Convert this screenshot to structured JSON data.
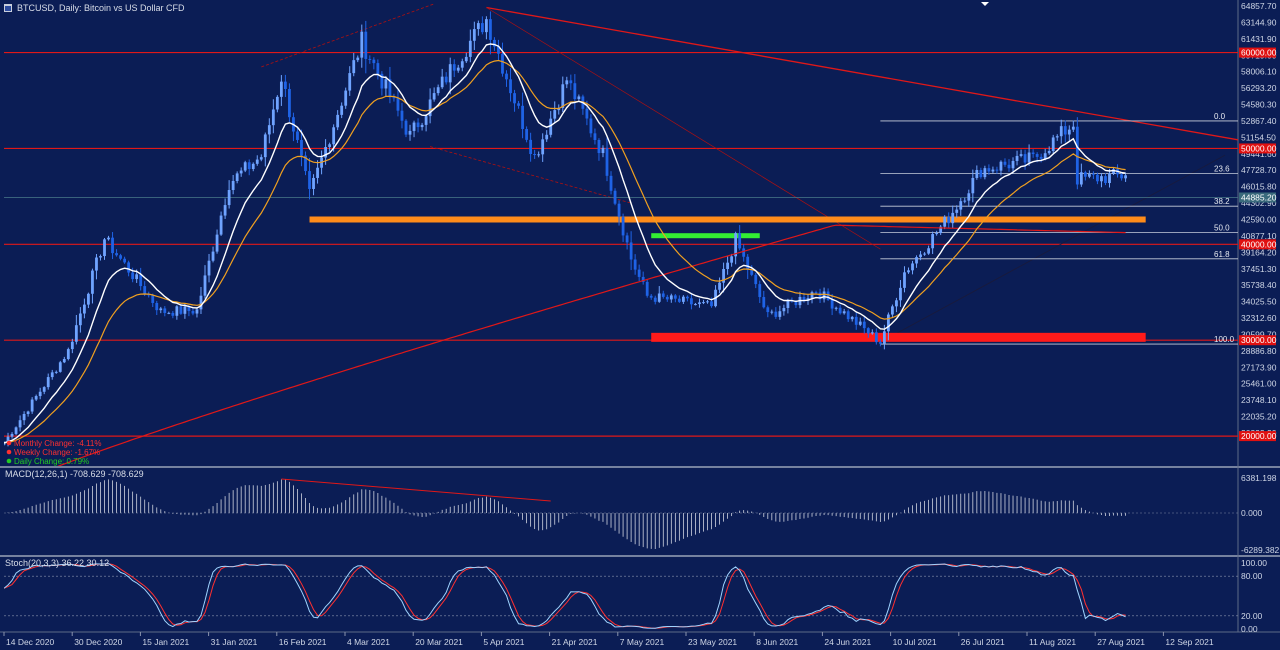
{
  "header": {
    "title": "BTCUSD, Daily:  Bitcoin vs US Dollar CFD"
  },
  "colors": {
    "background": "#0b1d55",
    "bull_candle": "#6fa3ff",
    "bear_candle": "#1f63e6",
    "ema_fast": "#ffffff",
    "ema_mid": "#f0a020",
    "ema_slow": "#e01818",
    "resistance_line": "#e01818",
    "support_zone_orange": "#ff8c1a",
    "support_zone_green": "#33ee33",
    "support_zone_red": "#ff1a1a",
    "macd_hist": "#d0d4e0",
    "stoch_main": "#9fd4ff",
    "stoch_signal": "#ff3030"
  },
  "price_axis": {
    "labels": [
      "64857.70",
      "63144.90",
      "61431.90",
      "59719.00",
      "58006.10",
      "56293.20",
      "54580.30",
      "52867.40",
      "51154.50",
      "49441.60",
      "47728.70",
      "46015.80",
      "44302.90",
      "42590.00",
      "40877.10",
      "39164.20",
      "37451.30",
      "35738.40",
      "34025.50",
      "32312.60",
      "30599.70",
      "28886.80",
      "27173.90",
      "25461.00",
      "23748.10",
      "22035.20",
      "20322.30"
    ],
    "current_price": "44885.20",
    "red_tags": [
      "60000.00",
      "50000.00",
      "40000.00",
      "30000.00",
      "20000.00"
    ]
  },
  "date_axis": {
    "labels": [
      "14 Dec 2020",
      "30 Dec 2020",
      "15 Jan 2021",
      "31 Jan 2021",
      "16 Feb 2021",
      "4 Mar 2021",
      "20 Mar 2021",
      "5 Apr 2021",
      "21 Apr 2021",
      "7 May 2021",
      "23 May 2021",
      "8 Jun 2021",
      "24 Jun 2021",
      "10 Jul 2021",
      "26 Jul 2021",
      "11 Aug 2021",
      "27 Aug 2021",
      "12 Sep 2021"
    ]
  },
  "fibonacci": {
    "levels": [
      "0.0",
      "23.6",
      "38.2",
      "50.0",
      "61.8",
      "100.0"
    ]
  },
  "info_box": {
    "lines": [
      "Monthly Change: -4.11%",
      "Weekly Change: -1.67%",
      "Daily Change: 0.79%"
    ],
    "colors": [
      "#ff3030",
      "#ff3030",
      "#22cc22"
    ]
  },
  "macd": {
    "label": "MACD(12,26,1) -708.629 -708.629",
    "axis": [
      "6381.198",
      "0.000",
      "-6289.382"
    ]
  },
  "stoch": {
    "label": "Stoch(20,3,3) 36.22 30.12",
    "axis": [
      "100.00",
      "80.00",
      "20.00",
      "0.00"
    ]
  },
  "chart_data": {
    "type": "candlestick",
    "symbol": "BTCUSD",
    "timeframe": "Daily",
    "ylim": [
      20322.3,
      64857.7
    ],
    "x_range": [
      "2020-12-14",
      "2021-09-20"
    ],
    "closes_keypoints": [
      {
        "date": "2020-12-14",
        "close": 19300
      },
      {
        "date": "2020-12-30",
        "close": 28900
      },
      {
        "date": "2021-01-08",
        "close": 40600
      },
      {
        "date": "2021-01-15",
        "close": 36800
      },
      {
        "date": "2021-01-22",
        "close": 33000
      },
      {
        "date": "2021-01-31",
        "close": 33100
      },
      {
        "date": "2021-02-08",
        "close": 46400
      },
      {
        "date": "2021-02-16",
        "close": 49200
      },
      {
        "date": "2021-02-21",
        "close": 57500
      },
      {
        "date": "2021-02-28",
        "close": 45100
      },
      {
        "date": "2021-03-13",
        "close": 61200
      },
      {
        "date": "2021-03-25",
        "close": 51300
      },
      {
        "date": "2021-04-05",
        "close": 58800
      },
      {
        "date": "2021-04-13",
        "close": 63500
      },
      {
        "date": "2021-04-25",
        "close": 49100
      },
      {
        "date": "2021-05-03",
        "close": 57200
      },
      {
        "date": "2021-05-12",
        "close": 49400
      },
      {
        "date": "2021-05-19",
        "close": 38500
      },
      {
        "date": "2021-05-23",
        "close": 34600
      },
      {
        "date": "2021-06-08",
        "close": 33500
      },
      {
        "date": "2021-06-14",
        "close": 40500
      },
      {
        "date": "2021-06-22",
        "close": 32500
      },
      {
        "date": "2021-07-04",
        "close": 35200
      },
      {
        "date": "2021-07-20",
        "close": 29800
      },
      {
        "date": "2021-07-26",
        "close": 37100
      },
      {
        "date": "2021-08-06",
        "close": 42800
      },
      {
        "date": "2021-08-14",
        "close": 47800
      },
      {
        "date": "2021-08-27",
        "close": 48900
      },
      {
        "date": "2021-09-06",
        "close": 52600
      },
      {
        "date": "2021-09-07",
        "close": 46800
      },
      {
        "date": "2021-09-14",
        "close": 47000
      },
      {
        "date": "2021-09-19",
        "close": 47200
      },
      {
        "date": "2021-09-21",
        "close": 40800
      },
      {
        "date": "2021-09-24",
        "close": 44885
      }
    ],
    "horizontal_levels": [
      60000,
      50000,
      40000,
      30000,
      20000
    ],
    "zones": [
      {
        "color": "orange",
        "price": 42590,
        "from": "2021-02-28",
        "to": "2021-09-24"
      },
      {
        "color": "green",
        "price": 40900,
        "from": "2021-05-24",
        "to": "2021-06-20"
      },
      {
        "color": "red",
        "price": 30300,
        "from": "2021-05-24",
        "to": "2021-09-24"
      }
    ],
    "fibonacci_retracement": {
      "high": 52867.4,
      "low": 29600,
      "levels": [
        0.0,
        23.6,
        38.2,
        50.0,
        61.8,
        100.0
      ]
    },
    "indicators": {
      "macd": {
        "params": "12,26,1",
        "value": -708.629,
        "signal": -708.629
      },
      "stochastic": {
        "params": "20,3,3",
        "k": 36.22,
        "d": 30.12,
        "levels": [
          80,
          20
        ]
      }
    }
  }
}
